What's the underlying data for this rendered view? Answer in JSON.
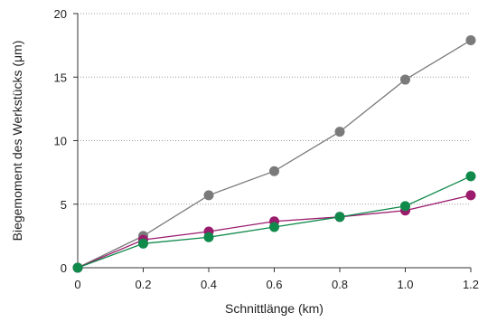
{
  "chart_data": {
    "type": "line",
    "title": "",
    "xlabel": "Schnittlänge (km)",
    "ylabel": "Biegemoment des Werkstücks (μm)",
    "x": [
      0,
      0.2,
      0.4,
      0.6,
      0.8,
      1.0,
      1.2
    ],
    "x_tick_labels": [
      "0",
      "0.2",
      "0.4",
      "0.6",
      "0.8",
      "1.0",
      "1.2"
    ],
    "xlim": [
      0,
      1.2
    ],
    "y_ticks": [
      0,
      5,
      10,
      15,
      20
    ],
    "y_tick_labels": [
      "0",
      "5",
      "10",
      "15",
      "20"
    ],
    "ylim": [
      0,
      20
    ],
    "grid": "horizontal dotted",
    "legend": "none",
    "series": [
      {
        "color": "#7a7a7a",
        "values": [
          0,
          2.5,
          5.7,
          7.6,
          10.7,
          14.8,
          17.9
        ]
      },
      {
        "color": "#9b1b6d",
        "values": [
          0,
          2.2,
          2.85,
          3.65,
          4.0,
          4.5,
          5.7
        ]
      },
      {
        "color": "#0f8a4a",
        "values": [
          0,
          1.9,
          2.4,
          3.2,
          4.0,
          4.85,
          7.2
        ]
      }
    ]
  }
}
